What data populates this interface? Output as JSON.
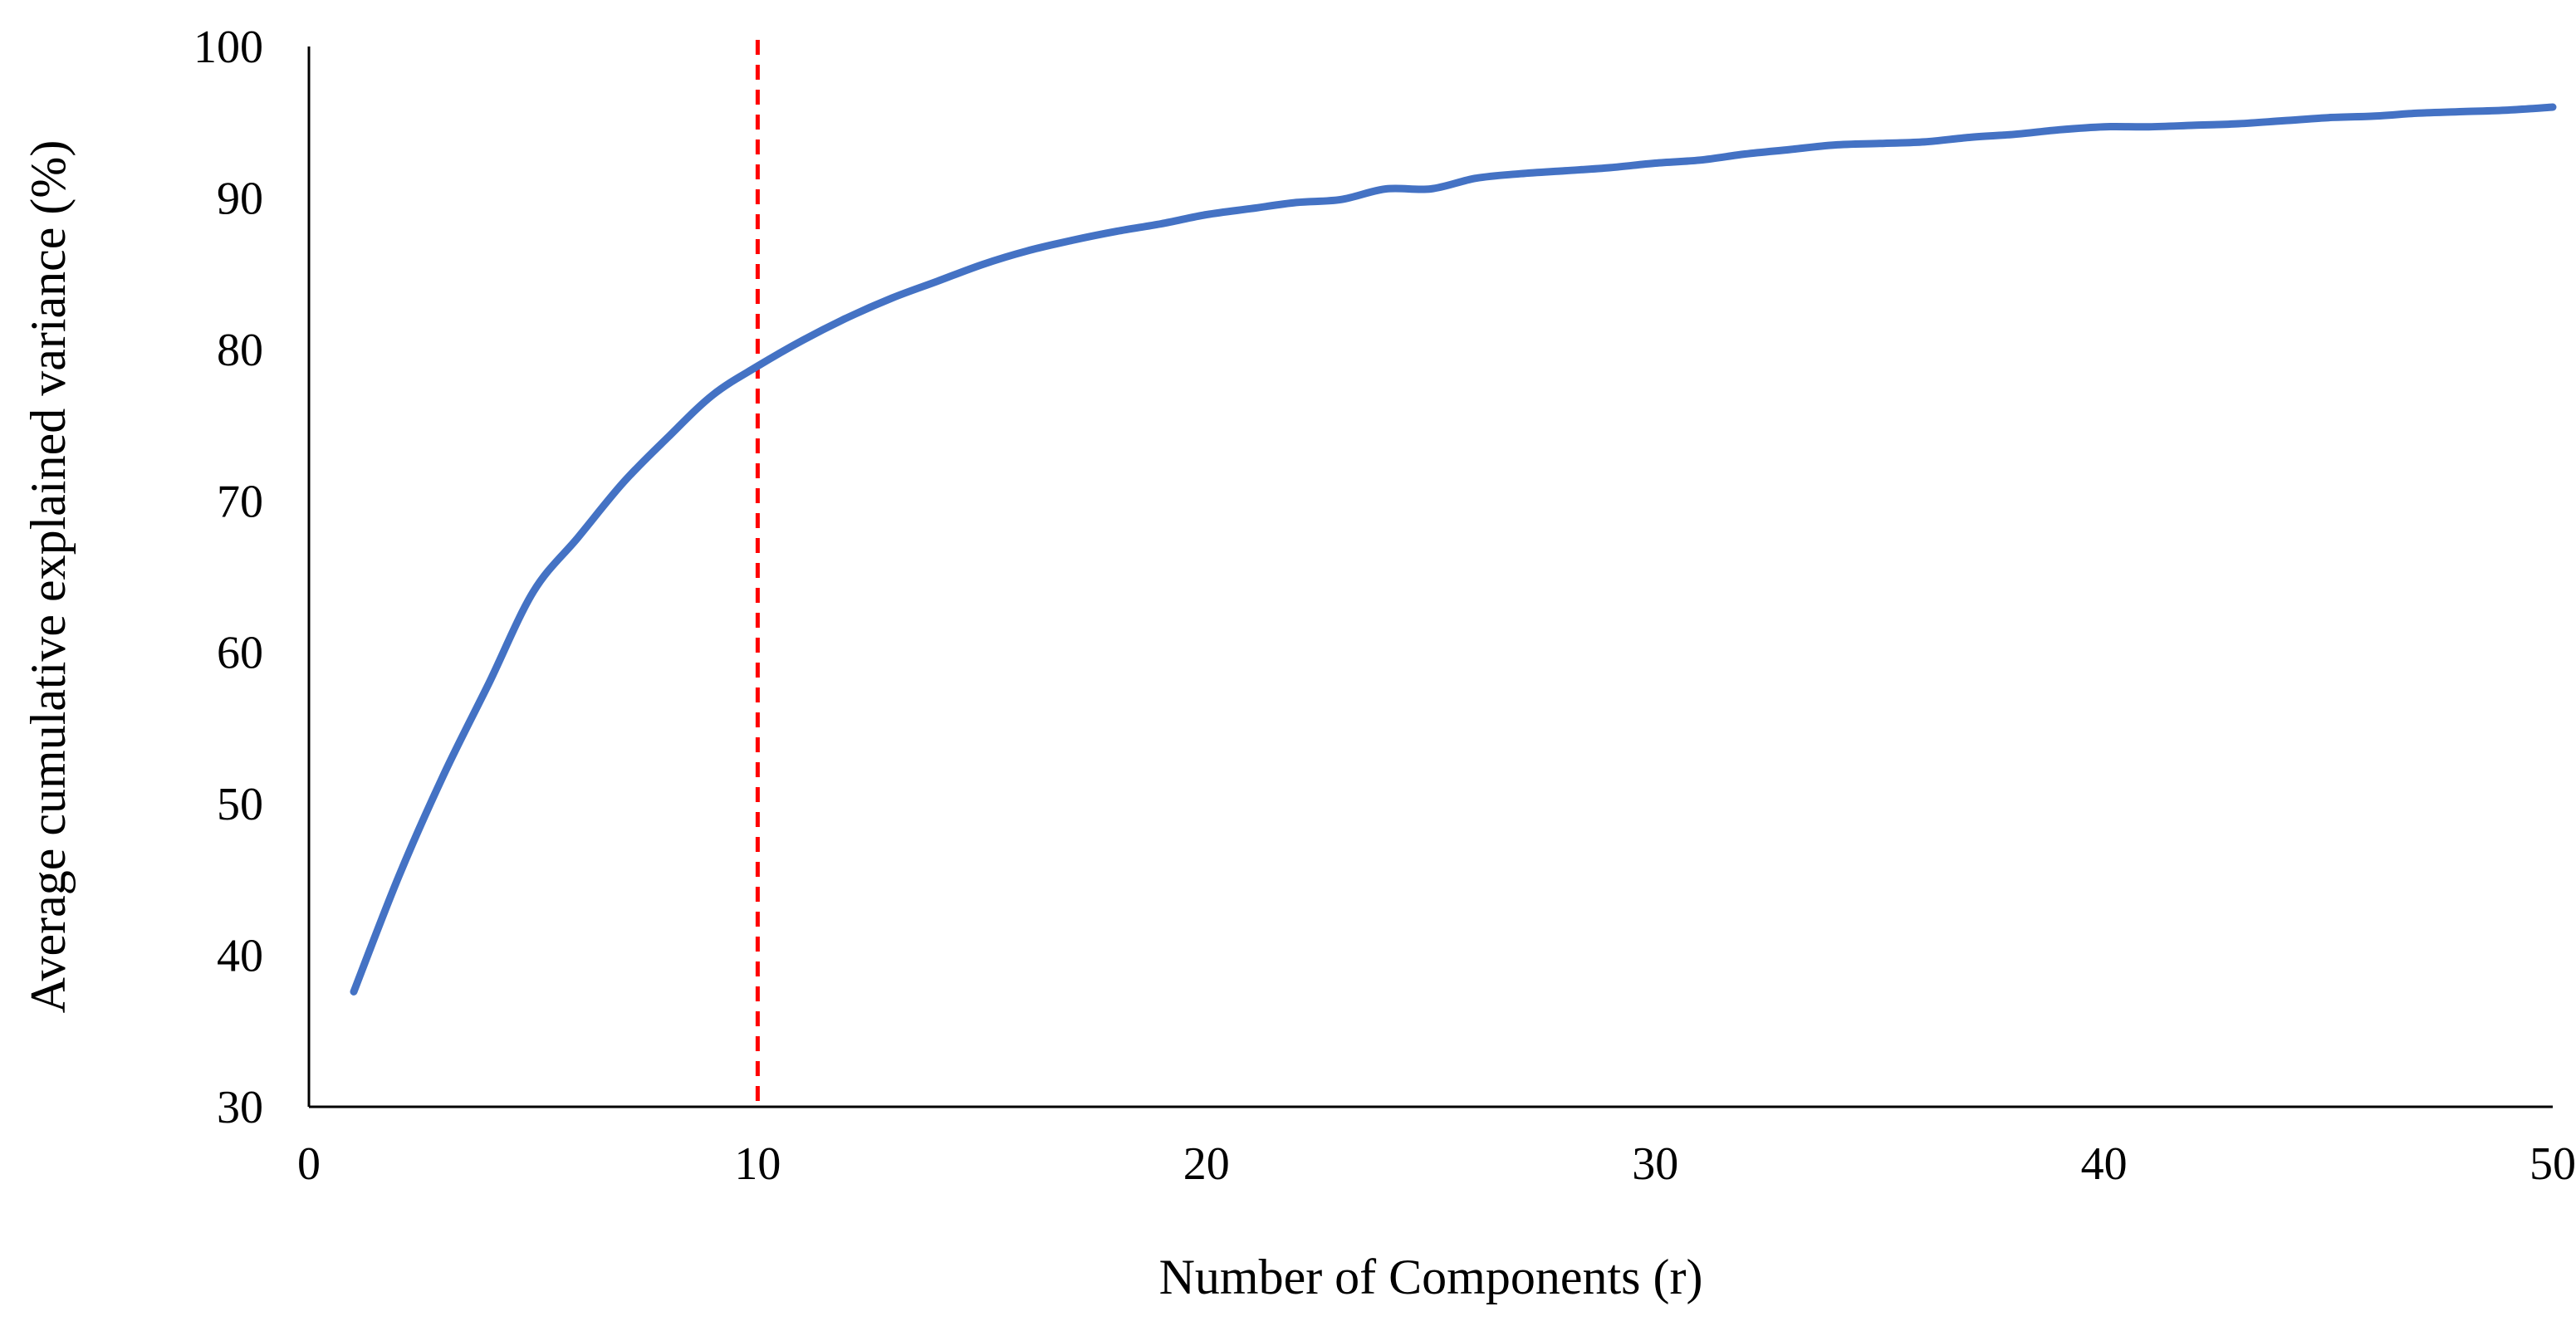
{
  "chart_data": {
    "type": "line",
    "xlabel": "Number of Components (r)",
    "ylabel": "Average cumulative explained variance (%)",
    "xlim": [
      0,
      50
    ],
    "ylim": [
      30,
      100
    ],
    "xticks": [
      0,
      10,
      20,
      30,
      40,
      50
    ],
    "yticks": [
      30,
      40,
      50,
      60,
      70,
      80,
      90,
      100
    ],
    "grid": false,
    "legend": "none",
    "series": [
      {
        "color": "#4472c4",
        "x": [
          1,
          2,
          3,
          4,
          5,
          6,
          7,
          8,
          9,
          10,
          11,
          12,
          13,
          14,
          15,
          16,
          17,
          18,
          19,
          20,
          21,
          22,
          23,
          24,
          25,
          26,
          27,
          28,
          29,
          30,
          31,
          32,
          33,
          34,
          35,
          36,
          37,
          38,
          39,
          40,
          41,
          42,
          43,
          44,
          45,
          46,
          47,
          48,
          49,
          50
        ],
        "y": [
          37.6,
          45.2,
          51.9,
          57.9,
          64.0,
          67.6,
          71.2,
          74.2,
          77.0,
          78.9,
          80.6,
          82.1,
          83.4,
          84.5,
          85.6,
          86.5,
          87.2,
          87.8,
          88.3,
          88.9,
          89.3,
          89.7,
          89.9,
          90.6,
          90.6,
          91.3,
          91.6,
          91.8,
          92.0,
          92.3,
          92.5,
          92.9,
          93.2,
          93.5,
          93.6,
          93.7,
          94.0,
          94.2,
          94.5,
          94.7,
          94.7,
          94.8,
          94.9,
          95.1,
          95.3,
          95.4,
          95.6,
          95.7,
          95.8,
          96.0
        ]
      }
    ],
    "reference_lines": [
      {
        "axis": "x",
        "value": 10,
        "color": "#ff0000",
        "style": "dashed"
      }
    ]
  }
}
